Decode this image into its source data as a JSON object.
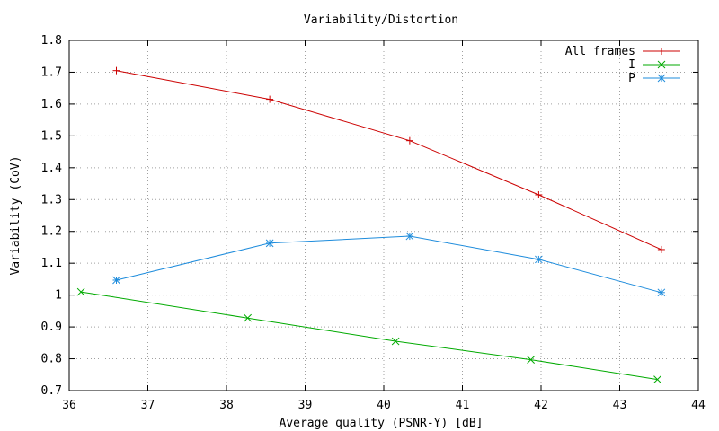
{
  "chart_data": {
    "type": "line",
    "title": "Variability/Distortion",
    "xlabel": "Average quality (PSNR-Y) [dB]",
    "ylabel": "Variability (CoV)",
    "xlim": [
      36,
      44
    ],
    "ylim": [
      0.7,
      1.8
    ],
    "x_ticks": [
      "36",
      "37",
      "38",
      "39",
      "40",
      "41",
      "42",
      "43",
      "44"
    ],
    "y_ticks": [
      "0.7",
      "0.8",
      "0.9",
      "1",
      "1.1",
      "1.2",
      "1.3",
      "1.4",
      "1.5",
      "1.6",
      "1.7",
      "1.8"
    ],
    "grid": true,
    "legend_position": "top-right",
    "series": [
      {
        "name": "All frames",
        "color": "#cc0000",
        "marker": "plus",
        "points": [
          [
            36.6,
            1.705
          ],
          [
            38.55,
            1.615
          ],
          [
            40.33,
            1.485
          ],
          [
            41.97,
            1.315
          ],
          [
            43.53,
            1.143
          ]
        ]
      },
      {
        "name": "I",
        "color": "#00aa00",
        "marker": "cross",
        "points": [
          [
            36.15,
            1.01
          ],
          [
            38.27,
            0.928
          ],
          [
            40.15,
            0.855
          ],
          [
            41.87,
            0.797
          ],
          [
            43.48,
            0.735
          ]
        ]
      },
      {
        "name": "P",
        "color": "#1e8cdc",
        "marker": "star",
        "points": [
          [
            36.6,
            1.047
          ],
          [
            38.55,
            1.163
          ],
          [
            40.33,
            1.185
          ],
          [
            41.97,
            1.112
          ],
          [
            43.53,
            1.008
          ]
        ]
      }
    ]
  }
}
